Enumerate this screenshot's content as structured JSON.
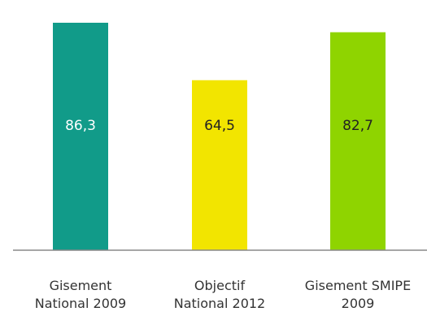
{
  "chart_data": {
    "type": "bar",
    "title": "",
    "xlabel": "",
    "ylabel": "",
    "ylim": [
      0,
      90
    ],
    "grid": false,
    "legend": "none",
    "categories": [
      [
        "Gisement",
        "National 2009"
      ],
      [
        "Objectif",
        "National 2012"
      ],
      [
        "Gisement SMIPE",
        "2009"
      ]
    ],
    "values": [
      86.3,
      64.5,
      82.7
    ],
    "value_labels": [
      "86,3",
      "64,5",
      "82,7"
    ],
    "colors": [
      "#119b89",
      "#f2e500",
      "#8fd400"
    ],
    "label_colors": [
      "#ffffff",
      "#222222",
      "#222222"
    ]
  }
}
